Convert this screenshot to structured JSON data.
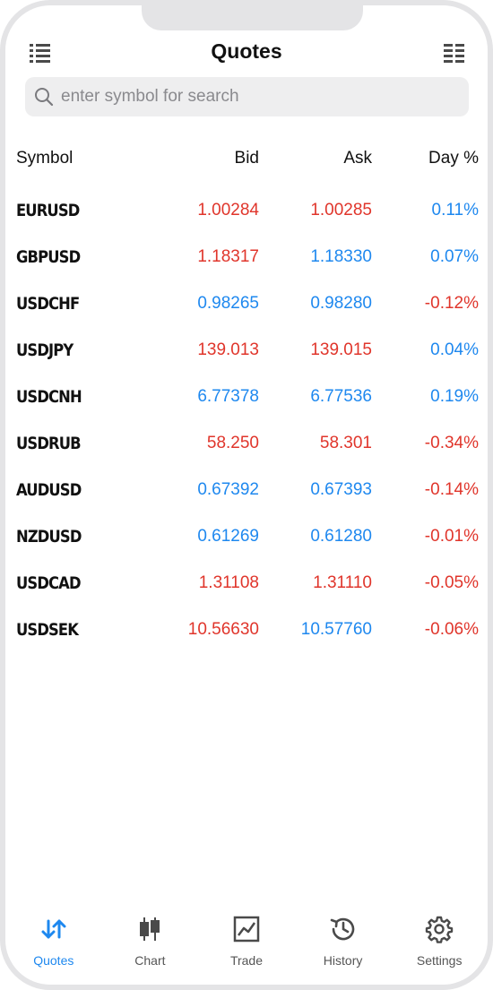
{
  "header": {
    "title": "Quotes",
    "left_icon": "list-icon",
    "right_icon": "grid-list-icon"
  },
  "search": {
    "placeholder": "enter symbol for search",
    "value": ""
  },
  "columns": {
    "symbol": "Symbol",
    "bid": "Bid",
    "ask": "Ask",
    "day": "Day %"
  },
  "colors": {
    "up": "#1e88ef",
    "down": "#e0352b",
    "accent": "#1e88ef"
  },
  "quotes": [
    {
      "symbol": "EURUSD",
      "bid": "1.00284",
      "ask": "1.00285",
      "day": "0.11%",
      "bid_dir": "down",
      "ask_dir": "down",
      "day_dir": "up"
    },
    {
      "symbol": "GBPUSD",
      "bid": "1.18317",
      "ask": "1.18330",
      "day": "0.07%",
      "bid_dir": "down",
      "ask_dir": "up",
      "day_dir": "up"
    },
    {
      "symbol": "USDCHF",
      "bid": "0.98265",
      "ask": "0.98280",
      "day": "-0.12%",
      "bid_dir": "up",
      "ask_dir": "up",
      "day_dir": "down"
    },
    {
      "symbol": "USDJPY",
      "bid": "139.013",
      "ask": "139.015",
      "day": "0.04%",
      "bid_dir": "down",
      "ask_dir": "down",
      "day_dir": "up"
    },
    {
      "symbol": "USDCNH",
      "bid": "6.77378",
      "ask": "6.77536",
      "day": "0.19%",
      "bid_dir": "up",
      "ask_dir": "up",
      "day_dir": "up"
    },
    {
      "symbol": "USDRUB",
      "bid": "58.250",
      "ask": "58.301",
      "day": "-0.34%",
      "bid_dir": "down",
      "ask_dir": "down",
      "day_dir": "down"
    },
    {
      "symbol": "AUDUSD",
      "bid": "0.67392",
      "ask": "0.67393",
      "day": "-0.14%",
      "bid_dir": "up",
      "ask_dir": "up",
      "day_dir": "down"
    },
    {
      "symbol": "NZDUSD",
      "bid": "0.61269",
      "ask": "0.61280",
      "day": "-0.01%",
      "bid_dir": "up",
      "ask_dir": "up",
      "day_dir": "down"
    },
    {
      "symbol": "USDCAD",
      "bid": "1.31108",
      "ask": "1.31110",
      "day": "-0.05%",
      "bid_dir": "down",
      "ask_dir": "down",
      "day_dir": "down"
    },
    {
      "symbol": "USDSEK",
      "bid": "10.56630",
      "ask": "10.57760",
      "day": "-0.06%",
      "bid_dir": "down",
      "ask_dir": "up",
      "day_dir": "down"
    }
  ],
  "tabbar": {
    "active": "quotes",
    "items": [
      {
        "id": "quotes",
        "label": "Quotes",
        "icon": "arrows-up-down-icon"
      },
      {
        "id": "chart",
        "label": "Chart",
        "icon": "candlestick-icon"
      },
      {
        "id": "trade",
        "label": "Trade",
        "icon": "trade-chart-icon"
      },
      {
        "id": "history",
        "label": "History",
        "icon": "history-clock-icon"
      },
      {
        "id": "settings",
        "label": "Settings",
        "icon": "gear-icon"
      }
    ]
  }
}
